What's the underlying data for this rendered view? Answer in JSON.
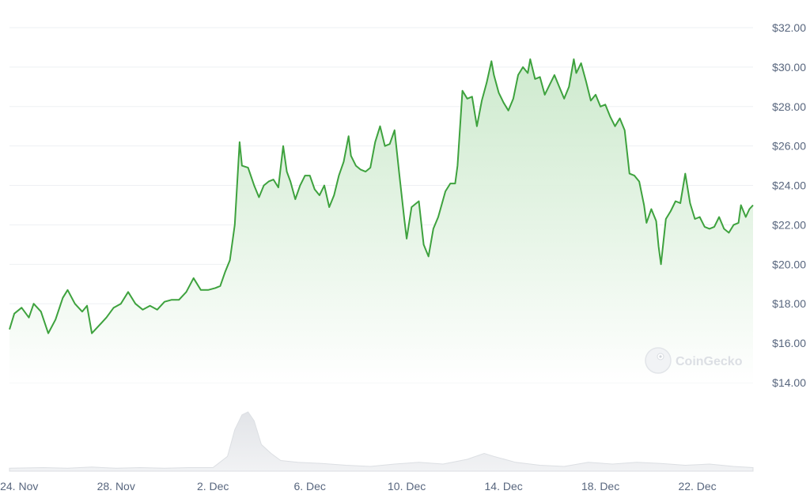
{
  "chart_data": {
    "type": "area",
    "title": "",
    "xlabel": "",
    "ylabel": "",
    "y_axis_position": "right",
    "ylim": [
      14,
      32
    ],
    "y_ticks": [
      "$14.00",
      "$16.00",
      "$18.00",
      "$20.00",
      "$22.00",
      "$24.00",
      "$26.00",
      "$28.00",
      "$30.00",
      "$32.00"
    ],
    "y_tick_values": [
      14,
      16,
      18,
      20,
      22,
      24,
      26,
      28,
      30,
      32
    ],
    "x_ticks": [
      "24. Nov",
      "28. Nov",
      "2. Dec",
      "6. Dec",
      "10. Dec",
      "14. Dec",
      "18. Dec",
      "22. Dec"
    ],
    "x_tick_days": [
      0,
      4,
      8,
      12,
      16,
      20,
      24,
      28
    ],
    "x_domain_days": [
      -0.4,
      30.3
    ],
    "grid": true,
    "watermark": "CoinGecko",
    "colors": {
      "line": "#3ea23e",
      "area_top": "#c9e8c9",
      "area_bottom": "#ffffff",
      "volume": "#e6e8ec",
      "grid": "#eef0f3",
      "tick_text": "#58667e"
    },
    "series": [
      {
        "points": [
          [
            -0.4,
            16.7
          ],
          [
            -0.2,
            17.5
          ],
          [
            0.1,
            17.8
          ],
          [
            0.4,
            17.3
          ],
          [
            0.6,
            18.0
          ],
          [
            0.9,
            17.6
          ],
          [
            1.2,
            16.5
          ],
          [
            1.5,
            17.2
          ],
          [
            1.8,
            18.3
          ],
          [
            2.0,
            18.7
          ],
          [
            2.3,
            18.0
          ],
          [
            2.6,
            17.6
          ],
          [
            2.8,
            17.9
          ],
          [
            3.0,
            16.5
          ],
          [
            3.3,
            16.9
          ],
          [
            3.6,
            17.3
          ],
          [
            3.9,
            17.8
          ],
          [
            4.2,
            18.0
          ],
          [
            4.5,
            18.6
          ],
          [
            4.8,
            18.0
          ],
          [
            5.1,
            17.7
          ],
          [
            5.4,
            17.9
          ],
          [
            5.7,
            17.7
          ],
          [
            6.0,
            18.1
          ],
          [
            6.3,
            18.2
          ],
          [
            6.6,
            18.2
          ],
          [
            6.9,
            18.6
          ],
          [
            7.2,
            19.3
          ],
          [
            7.5,
            18.7
          ],
          [
            7.8,
            18.7
          ],
          [
            8.1,
            18.8
          ],
          [
            8.3,
            18.9
          ],
          [
            8.5,
            19.6
          ],
          [
            8.7,
            20.2
          ],
          [
            8.9,
            22.0
          ],
          [
            9.1,
            26.2
          ],
          [
            9.2,
            25.0
          ],
          [
            9.45,
            24.9
          ],
          [
            9.7,
            24.0
          ],
          [
            9.9,
            23.4
          ],
          [
            10.1,
            24.0
          ],
          [
            10.3,
            24.2
          ],
          [
            10.5,
            24.3
          ],
          [
            10.7,
            23.9
          ],
          [
            10.9,
            26.0
          ],
          [
            11.05,
            24.7
          ],
          [
            11.2,
            24.2
          ],
          [
            11.4,
            23.3
          ],
          [
            11.6,
            24.0
          ],
          [
            11.8,
            24.5
          ],
          [
            12.0,
            24.5
          ],
          [
            12.2,
            23.8
          ],
          [
            12.4,
            23.5
          ],
          [
            12.6,
            24.0
          ],
          [
            12.8,
            22.9
          ],
          [
            13.0,
            23.5
          ],
          [
            13.2,
            24.5
          ],
          [
            13.4,
            25.2
          ],
          [
            13.6,
            26.5
          ],
          [
            13.7,
            25.5
          ],
          [
            13.9,
            25.0
          ],
          [
            14.1,
            24.8
          ],
          [
            14.3,
            24.7
          ],
          [
            14.5,
            24.9
          ],
          [
            14.7,
            26.2
          ],
          [
            14.9,
            27.0
          ],
          [
            15.1,
            26.0
          ],
          [
            15.3,
            26.1
          ],
          [
            15.5,
            26.8
          ],
          [
            15.7,
            24.5
          ],
          [
            15.9,
            22.3
          ],
          [
            16.0,
            21.3
          ],
          [
            16.2,
            22.9
          ],
          [
            16.5,
            23.2
          ],
          [
            16.7,
            21.0
          ],
          [
            16.9,
            20.4
          ],
          [
            17.1,
            21.8
          ],
          [
            17.3,
            22.4
          ],
          [
            17.6,
            23.7
          ],
          [
            17.8,
            24.1
          ],
          [
            18.0,
            24.1
          ],
          [
            18.1,
            25.0
          ],
          [
            18.3,
            28.8
          ],
          [
            18.5,
            28.4
          ],
          [
            18.7,
            28.5
          ],
          [
            18.9,
            27.0
          ],
          [
            19.1,
            28.3
          ],
          [
            19.3,
            29.2
          ],
          [
            19.5,
            30.3
          ],
          [
            19.6,
            29.6
          ],
          [
            19.8,
            28.7
          ],
          [
            20.0,
            28.2
          ],
          [
            20.2,
            27.8
          ],
          [
            20.4,
            28.4
          ],
          [
            20.6,
            29.6
          ],
          [
            20.8,
            30.0
          ],
          [
            21.0,
            29.7
          ],
          [
            21.1,
            30.4
          ],
          [
            21.3,
            29.4
          ],
          [
            21.5,
            29.5
          ],
          [
            21.7,
            28.6
          ],
          [
            21.9,
            29.1
          ],
          [
            22.1,
            29.6
          ],
          [
            22.3,
            29.0
          ],
          [
            22.5,
            28.4
          ],
          [
            22.7,
            29.0
          ],
          [
            22.9,
            30.4
          ],
          [
            23.0,
            29.7
          ],
          [
            23.2,
            30.2
          ],
          [
            23.4,
            29.3
          ],
          [
            23.6,
            28.3
          ],
          [
            23.8,
            28.6
          ],
          [
            24.0,
            28.0
          ],
          [
            24.2,
            28.1
          ],
          [
            24.4,
            27.5
          ],
          [
            24.6,
            27.0
          ],
          [
            24.8,
            27.4
          ],
          [
            25.0,
            26.8
          ],
          [
            25.2,
            24.6
          ],
          [
            25.4,
            24.5
          ],
          [
            25.6,
            24.2
          ],
          [
            25.8,
            23.0
          ],
          [
            25.9,
            22.1
          ],
          [
            26.1,
            22.8
          ],
          [
            26.3,
            22.2
          ],
          [
            26.4,
            20.9
          ],
          [
            26.5,
            20.0
          ],
          [
            26.7,
            22.3
          ],
          [
            26.9,
            22.7
          ],
          [
            27.1,
            23.2
          ],
          [
            27.3,
            23.1
          ],
          [
            27.5,
            24.6
          ],
          [
            27.7,
            23.1
          ],
          [
            27.9,
            22.3
          ],
          [
            28.1,
            22.4
          ],
          [
            28.3,
            21.9
          ],
          [
            28.5,
            21.8
          ],
          [
            28.7,
            21.9
          ],
          [
            28.9,
            22.4
          ],
          [
            29.1,
            21.8
          ],
          [
            29.3,
            21.6
          ],
          [
            29.5,
            22.0
          ],
          [
            29.7,
            22.1
          ],
          [
            29.8,
            23.0
          ],
          [
            30.0,
            22.4
          ],
          [
            30.15,
            22.8
          ],
          [
            30.3,
            23.0
          ]
        ]
      }
    ],
    "volume": [
      [
        -0.4,
        0.05
      ],
      [
        1.0,
        0.06
      ],
      [
        2.0,
        0.05
      ],
      [
        3.0,
        0.07
      ],
      [
        4.0,
        0.05
      ],
      [
        5.0,
        0.06
      ],
      [
        6.0,
        0.05
      ],
      [
        7.0,
        0.06
      ],
      [
        8.0,
        0.06
      ],
      [
        8.6,
        0.25
      ],
      [
        8.9,
        0.7
      ],
      [
        9.2,
        0.95
      ],
      [
        9.45,
        1.0
      ],
      [
        9.7,
        0.85
      ],
      [
        10.0,
        0.45
      ],
      [
        10.4,
        0.3
      ],
      [
        10.8,
        0.18
      ],
      [
        11.5,
        0.15
      ],
      [
        12.5,
        0.13
      ],
      [
        13.5,
        0.1
      ],
      [
        14.5,
        0.08
      ],
      [
        15.5,
        0.12
      ],
      [
        16.5,
        0.15
      ],
      [
        17.5,
        0.12
      ],
      [
        18.5,
        0.2
      ],
      [
        19.2,
        0.3
      ],
      [
        19.6,
        0.25
      ],
      [
        20.5,
        0.15
      ],
      [
        21.5,
        0.1
      ],
      [
        22.5,
        0.08
      ],
      [
        23.5,
        0.15
      ],
      [
        24.5,
        0.12
      ],
      [
        25.5,
        0.15
      ],
      [
        26.5,
        0.13
      ],
      [
        27.5,
        0.1
      ],
      [
        28.5,
        0.12
      ],
      [
        29.5,
        0.08
      ],
      [
        30.3,
        0.06
      ]
    ]
  }
}
